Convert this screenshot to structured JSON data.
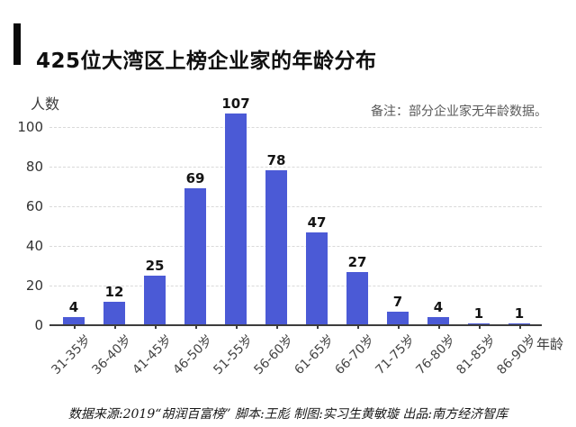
{
  "header": {
    "title": "425位大湾区上榜企业家的年龄分布"
  },
  "chart_data": {
    "type": "bar",
    "title": "425位大湾区上榜企业家的年龄分布",
    "categories": [
      "31-35岁",
      "36-40岁",
      "41-45岁",
      "46-50岁",
      "51-55岁",
      "56-60岁",
      "61-65岁",
      "66-70岁",
      "71-75岁",
      "76-80岁",
      "81-85岁",
      "86-90岁"
    ],
    "values": [
      4,
      12,
      25,
      69,
      107,
      78,
      47,
      27,
      7,
      4,
      1,
      1
    ],
    "xlabel": "年龄",
    "ylabel": "人数",
    "yticks": [
      0,
      20,
      40,
      60,
      80,
      100
    ],
    "ylim": [
      0,
      110
    ],
    "grid": "horizontal-dashed",
    "legend": "none",
    "note": "备注：部分企业家无年龄数据。",
    "bar_color": "#4b5ad6"
  },
  "footer": {
    "credits": "数据来源:2019“胡润百富榜”  脚本:王彪  制图:实习生黄敏璇  出品:南方经济智库"
  }
}
